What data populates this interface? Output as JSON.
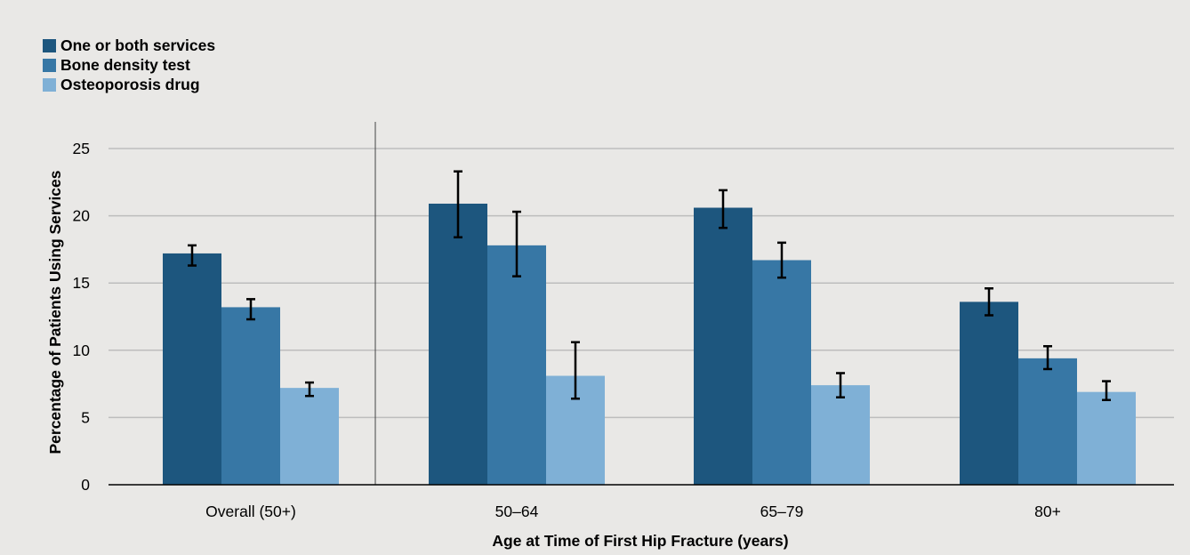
{
  "chart_data": {
    "type": "bar",
    "title": "",
    "categories": [
      "Overall (50+)",
      "50–64",
      "65–79",
      "80+"
    ],
    "series": [
      {
        "name": "One or both services",
        "color": "#1d567e",
        "values": [
          17.2,
          20.9,
          20.6,
          13.6
        ],
        "error_low": [
          16.3,
          18.4,
          19.1,
          12.6
        ],
        "error_high": [
          17.8,
          23.3,
          21.9,
          14.6
        ]
      },
      {
        "name": "Bone density test",
        "color": "#3777a5",
        "values": [
          13.2,
          17.8,
          16.7,
          9.4
        ],
        "error_low": [
          12.3,
          15.5,
          15.4,
          8.6
        ],
        "error_high": [
          13.8,
          20.3,
          18.0,
          10.3
        ]
      },
      {
        "name": "Osteoporosis drug",
        "color": "#7fb0d6",
        "values": [
          7.2,
          8.1,
          7.4,
          6.9
        ],
        "error_low": [
          6.6,
          6.4,
          6.5,
          6.3
        ],
        "error_high": [
          7.6,
          10.6,
          8.3,
          7.7
        ]
      }
    ],
    "xlabel": "Age at Time of First Hip Fracture (years)",
    "ylabel": "Percentage of Patients Using Services",
    "ylim": [
      0,
      25
    ],
    "yticks": [
      0,
      5,
      10,
      15,
      20,
      25
    ],
    "grid": true,
    "legend_position": "top-left",
    "separator_after_category": 0,
    "background": "#e9e8e6",
    "gridline_color": "#bdbdbd"
  }
}
